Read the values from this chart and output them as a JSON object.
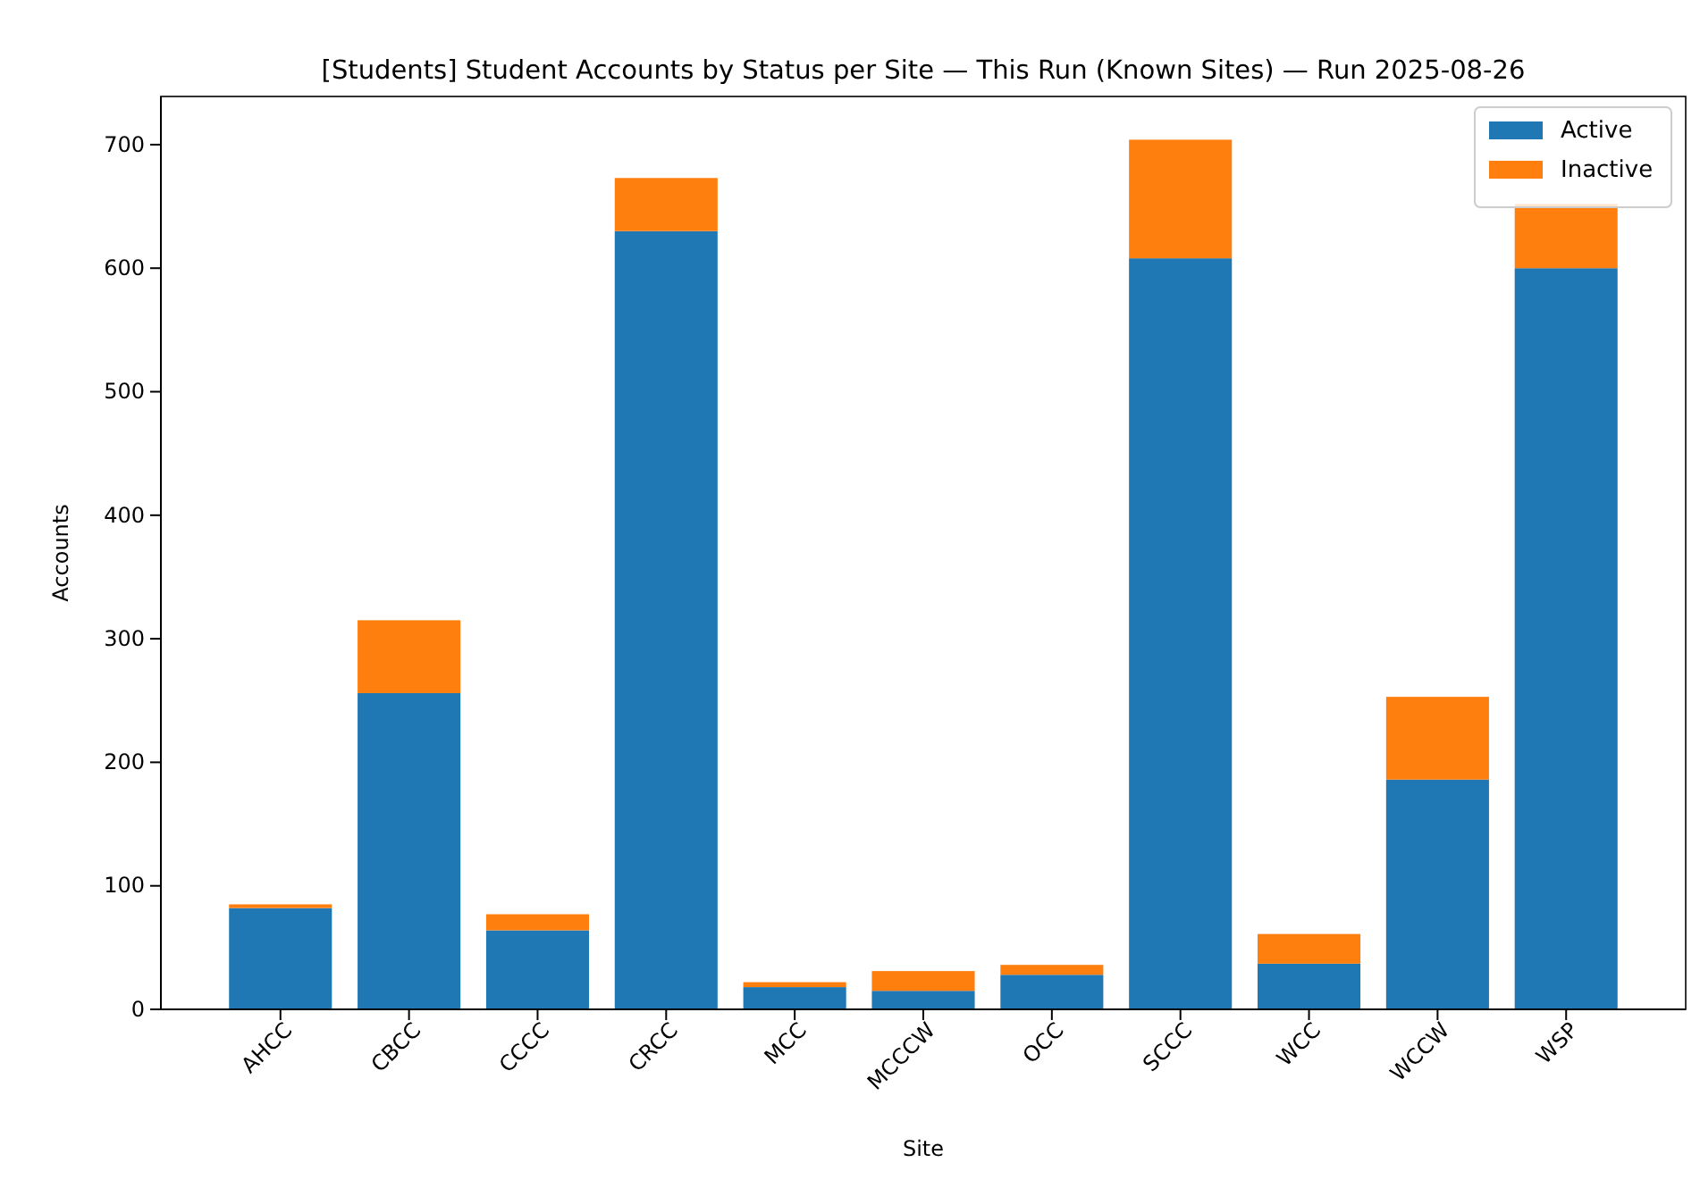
{
  "chart_data": {
    "type": "bar",
    "title": "[Students] Student Accounts by Status per Site — This Run (Known Sites) — Run 2025-08-26",
    "xlabel": "Site",
    "ylabel": "Accounts",
    "categories": [
      "AHCC",
      "CBCC",
      "CCCC",
      "CRCC",
      "MCC",
      "MCCCW",
      "OCC",
      "SCCC",
      "WCC",
      "WCCW",
      "WSP"
    ],
    "stacked": true,
    "series": [
      {
        "name": "Active",
        "color": "#1f77b4",
        "values": [
          82,
          256,
          64,
          630,
          18,
          15,
          28,
          608,
          37,
          186,
          600
        ]
      },
      {
        "name": "Inactive",
        "color": "#ff7f0e",
        "values": [
          3,
          59,
          13,
          43,
          4,
          16,
          8,
          96,
          24,
          67,
          52
        ]
      }
    ],
    "ylim": [
      0,
      739
    ],
    "yticks": [
      0,
      100,
      200,
      300,
      400,
      500,
      600,
      700
    ],
    "legend": "top right",
    "grid": false
  }
}
